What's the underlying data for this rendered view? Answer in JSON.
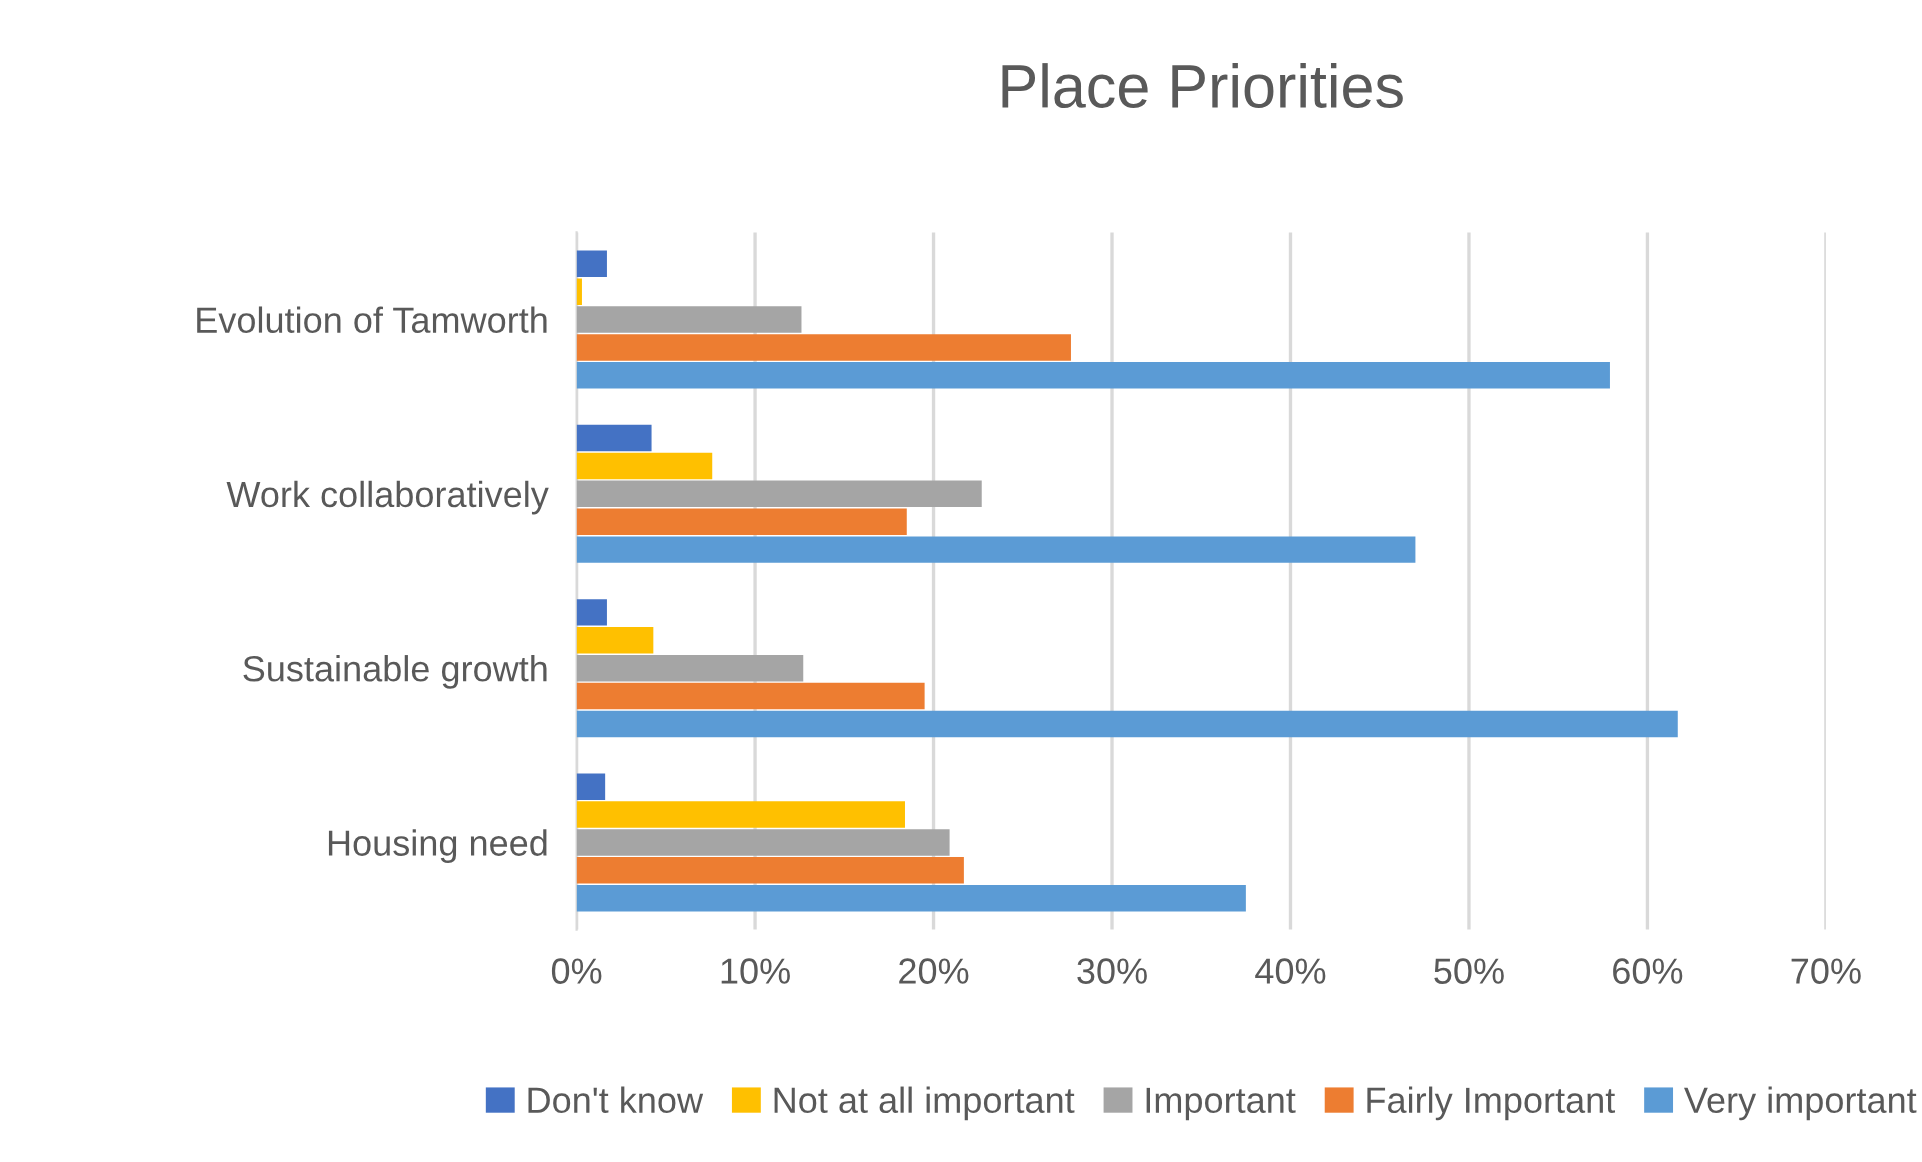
{
  "chart_data": {
    "type": "bar",
    "orientation": "horizontal",
    "title": "Place Priorities",
    "categories": [
      "Evolution of Tamworth",
      "Work collaboratively",
      "Sustainable growth",
      "Housing need"
    ],
    "series": [
      {
        "name": "Don't know",
        "color": "#4472c4",
        "values": [
          1.7,
          4.2,
          1.7,
          1.6
        ]
      },
      {
        "name": "Not at all important",
        "color": "#ffc000",
        "values": [
          0.3,
          7.6,
          4.3,
          18.4
        ]
      },
      {
        "name": "Important",
        "color": "#a5a5a5",
        "values": [
          12.6,
          22.7,
          12.7,
          20.9
        ]
      },
      {
        "name": "Fairly Important",
        "color": "#ed7d31",
        "values": [
          27.7,
          18.5,
          19.5,
          21.7
        ]
      },
      {
        "name": "Very important",
        "color": "#5b9bd5",
        "values": [
          57.9,
          47.0,
          61.7,
          37.5
        ]
      }
    ],
    "xlim": [
      0,
      70
    ],
    "xticks": [
      {
        "value": 0,
        "label": "0%"
      },
      {
        "value": 10,
        "label": "10%"
      },
      {
        "value": 20,
        "label": "20%"
      },
      {
        "value": 30,
        "label": "30%"
      },
      {
        "value": 40,
        "label": "40%"
      },
      {
        "value": 50,
        "label": "50%"
      },
      {
        "value": 60,
        "label": "60%"
      },
      {
        "value": 70,
        "label": "70%"
      }
    ],
    "grid": "x",
    "legend": "bottom"
  }
}
